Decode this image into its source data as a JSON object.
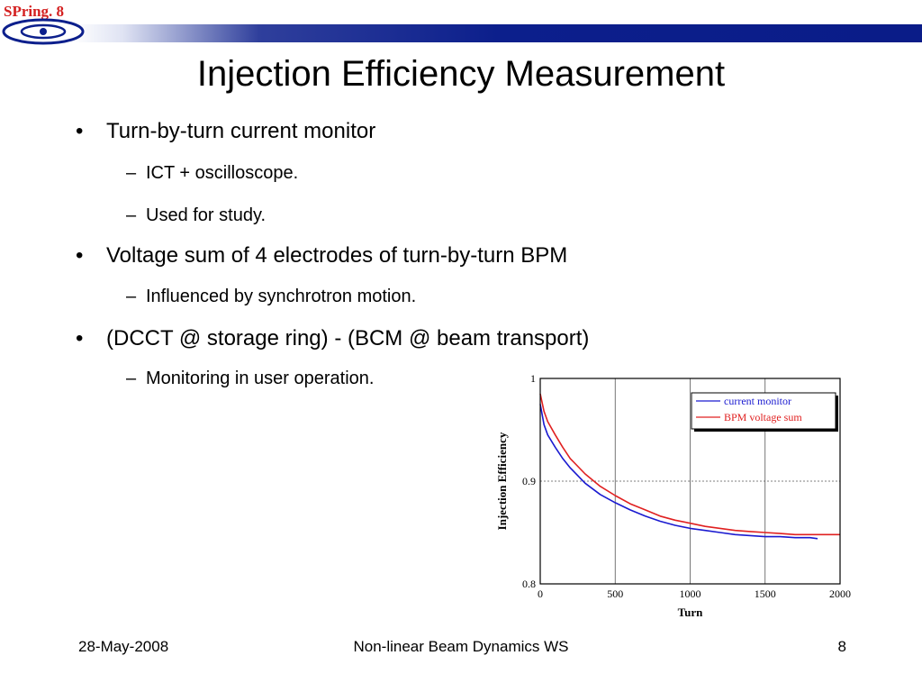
{
  "slide": {
    "logo_text": "SPring. 8",
    "title": "Injection Efficiency Measurement",
    "bullets": [
      {
        "text": "Turn-by-turn current monitor",
        "subs": [
          "ICT + oscilloscope.",
          "Used for study."
        ]
      },
      {
        "text": "Voltage sum of 4 electrodes of turn-by-turn BPM",
        "subs": [
          "Influenced by synchrotron motion."
        ]
      },
      {
        "text": "(DCCT @ storage ring) - (BCM @ beam transport)",
        "subs": [
          "Monitoring in user operation."
        ]
      }
    ],
    "bullet_glyph": "•",
    "dash_glyph": "–",
    "footer": {
      "date": "28-May-2008",
      "center": "Non-linear Beam Dynamics WS",
      "page": "8"
    }
  },
  "chart_data": {
    "type": "line",
    "title": "",
    "xlabel": "Turn",
    "ylabel": "Injection Efficiency",
    "xlim": [
      0,
      2000
    ],
    "ylim": [
      0.8,
      1.0
    ],
    "x_ticks": [
      "0",
      "500",
      "1000",
      "1500",
      "2000"
    ],
    "y_ticks": [
      "0.8",
      "0.9",
      "1"
    ],
    "grid": true,
    "legend_position": "top-right",
    "series": [
      {
        "name": "current monitor",
        "color": "#1a1ad0",
        "x": [
          0,
          25,
          50,
          100,
          150,
          200,
          300,
          400,
          500,
          600,
          700,
          800,
          900,
          1000,
          1100,
          1200,
          1300,
          1400,
          1500,
          1600,
          1700,
          1800,
          1850
        ],
        "y": [
          0.975,
          0.955,
          0.945,
          0.933,
          0.922,
          0.913,
          0.898,
          0.887,
          0.879,
          0.872,
          0.866,
          0.861,
          0.857,
          0.854,
          0.852,
          0.85,
          0.848,
          0.847,
          0.846,
          0.846,
          0.845,
          0.845,
          0.844
        ]
      },
      {
        "name": "BPM voltage sum",
        "color": "#e02020",
        "x": [
          0,
          25,
          50,
          100,
          150,
          200,
          300,
          400,
          500,
          600,
          700,
          800,
          900,
          1000,
          1100,
          1200,
          1300,
          1400,
          1500,
          1600,
          1700,
          1800,
          1900,
          2000
        ],
        "y": [
          0.985,
          0.968,
          0.958,
          0.945,
          0.933,
          0.922,
          0.907,
          0.895,
          0.886,
          0.878,
          0.872,
          0.866,
          0.862,
          0.859,
          0.856,
          0.854,
          0.852,
          0.851,
          0.85,
          0.849,
          0.848,
          0.848,
          0.848,
          0.848
        ]
      }
    ]
  }
}
